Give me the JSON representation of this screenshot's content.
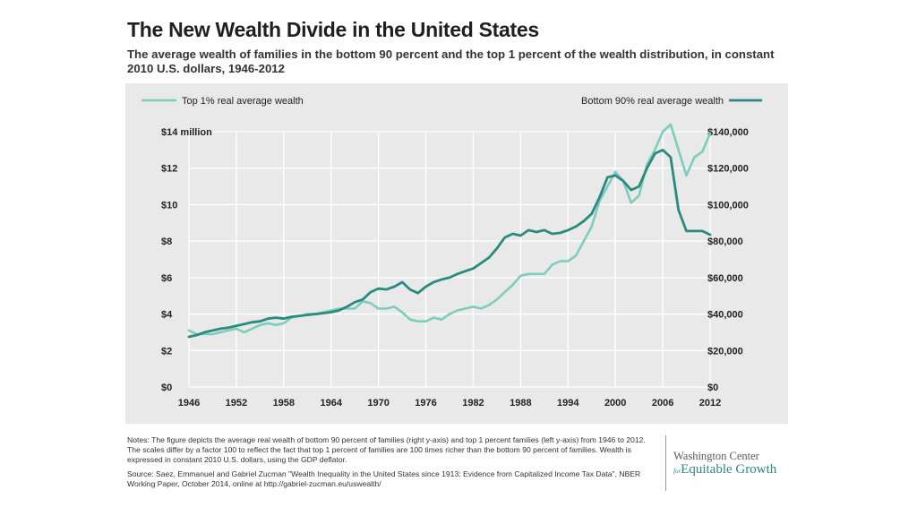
{
  "title": "The New Wealth Divide in the United States",
  "subtitle": "The average wealth of families in the bottom 90 percent and the top 1 percent of the wealth distribution, in constant 2010 U.S. dollars, 1946-2012",
  "colors": {
    "panel_bg": "#e9e9e9",
    "gridline": "#ffffff",
    "top1": "#7dcdbd",
    "bottom90": "#2b8a80"
  },
  "chart_data": {
    "type": "line",
    "legend_placement": "top",
    "grid": true,
    "x": [
      1946,
      1947,
      1948,
      1949,
      1950,
      1951,
      1952,
      1953,
      1954,
      1955,
      1956,
      1957,
      1958,
      1959,
      1960,
      1961,
      1962,
      1963,
      1964,
      1965,
      1966,
      1967,
      1968,
      1969,
      1970,
      1971,
      1972,
      1973,
      1974,
      1975,
      1976,
      1977,
      1978,
      1979,
      1980,
      1981,
      1982,
      1983,
      1984,
      1985,
      1986,
      1987,
      1988,
      1989,
      1990,
      1991,
      1992,
      1993,
      1994,
      1995,
      1996,
      1997,
      1998,
      1999,
      2000,
      2001,
      2002,
      2003,
      2004,
      2005,
      2006,
      2007,
      2008,
      2009,
      2010,
      2011,
      2012
    ],
    "xlim": [
      1946,
      2012
    ],
    "x_ticks": [
      "1946",
      "1952",
      "1958",
      "1964",
      "1970",
      "1976",
      "1982",
      "1988",
      "1994",
      "2000",
      "2006",
      "2012"
    ],
    "y_left": {
      "ylim": [
        0,
        14
      ],
      "tick_values": [
        0,
        2,
        4,
        6,
        8,
        10,
        12,
        14
      ],
      "tick_labels": [
        "$0",
        "$2",
        "$4",
        "$6",
        "$8",
        "$10",
        "$12",
        "$14 million"
      ]
    },
    "y_right": {
      "ylim": [
        0,
        140000
      ],
      "tick_values": [
        0,
        20000,
        40000,
        60000,
        80000,
        100000,
        120000,
        140000
      ],
      "tick_labels": [
        "$0",
        "$20,000",
        "$40,000",
        "$60,000",
        "$80,000",
        "$100,000",
        "$120,000",
        "$140,000"
      ]
    },
    "series": [
      {
        "name": "Top 1% real average wealth",
        "axis": "left",
        "color": "#7dcdbd",
        "values": [
          3.1,
          2.9,
          2.9,
          2.9,
          3.0,
          3.1,
          3.2,
          3.0,
          3.2,
          3.4,
          3.5,
          3.4,
          3.5,
          3.8,
          3.9,
          4.0,
          4.0,
          4.1,
          4.2,
          4.3,
          4.3,
          4.3,
          4.7,
          4.6,
          4.3,
          4.3,
          4.4,
          4.1,
          3.7,
          3.6,
          3.6,
          3.8,
          3.7,
          4.0,
          4.2,
          4.3,
          4.4,
          4.3,
          4.5,
          4.8,
          5.2,
          5.6,
          6.1,
          6.2,
          6.2,
          6.2,
          6.7,
          6.9,
          6.9,
          7.2,
          8.0,
          8.8,
          10.2,
          11.0,
          11.8,
          11.3,
          10.1,
          10.5,
          12.2,
          13.0,
          14.0,
          14.4,
          13.0,
          11.6,
          12.6,
          12.9,
          13.9
        ]
      },
      {
        "name": "Bottom 90% real average wealth",
        "axis": "right",
        "color": "#2b8a80",
        "values": [
          27500,
          28500,
          30000,
          31000,
          32000,
          32500,
          33500,
          34500,
          35500,
          36000,
          37500,
          38000,
          37500,
          38500,
          39000,
          39500,
          40000,
          40500,
          41000,
          42000,
          44000,
          46500,
          48000,
          52000,
          54000,
          53500,
          55000,
          57500,
          53500,
          51500,
          55000,
          57500,
          59000,
          60000,
          62000,
          63500,
          65000,
          68000,
          71000,
          76000,
          82000,
          84000,
          83000,
          86000,
          85000,
          86000,
          84000,
          84500,
          86000,
          88000,
          91000,
          95000,
          104000,
          115000,
          116000,
          113000,
          108000,
          110000,
          120000,
          128000,
          130000,
          126000,
          97000,
          85500,
          85500,
          85500,
          83500
        ]
      }
    ]
  },
  "notes": {
    "p1": "Notes: The figure depicts the average real wealth of bottom 90 percent of families (right y-axis) and top 1 percent families (left y-axis) from 1946 to 2012. The scales differ by a factor 100 to reflect the fact that top 1 percent of families are 100 times richer than the bottom 90 percent of families. Wealth is expressed in constant 2010 U.S. dollars, using the GDP deflator.",
    "p2": "Source: Saez, Emmanuel and Gabriel Zucman \"Wealth Inequality in the United States since 1913: Evidence from Capitalized Income Tax Data\", NBER Working Paper, October 2014, online at http://gabriel-zucman.eu/uswealth/"
  },
  "logo": {
    "line1": "Washington Center",
    "for": "for",
    "line2": "Equitable Growth"
  }
}
